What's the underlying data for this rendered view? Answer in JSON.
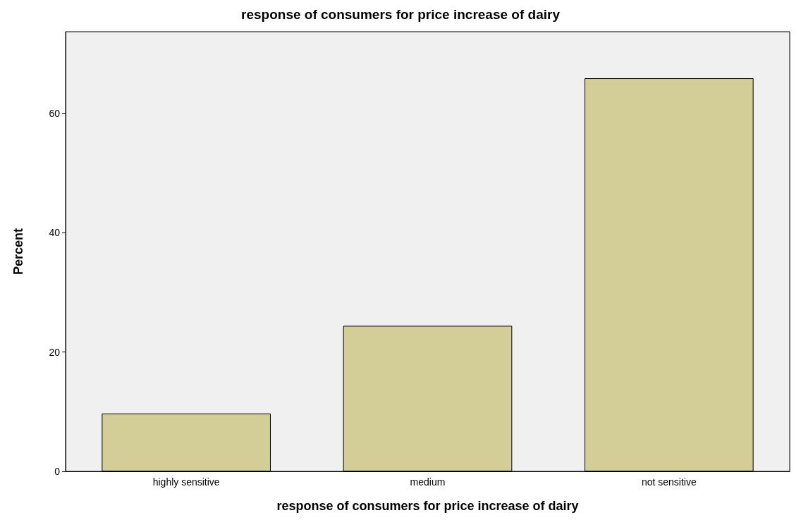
{
  "chart_data": {
    "type": "bar",
    "title": "response of consumers for price increase of dairy",
    "xlabel": "response of consumers for price increase of dairy",
    "ylabel": "Percent",
    "categories": [
      "highly sensitive",
      "medium",
      "not sensitive"
    ],
    "values": [
      9.7,
      24.4,
      65.9
    ],
    "color": "#d3ce97",
    "ylim": [
      0,
      73.7
    ],
    "yticks": [
      0,
      20,
      40,
      60
    ],
    "grid": false
  }
}
